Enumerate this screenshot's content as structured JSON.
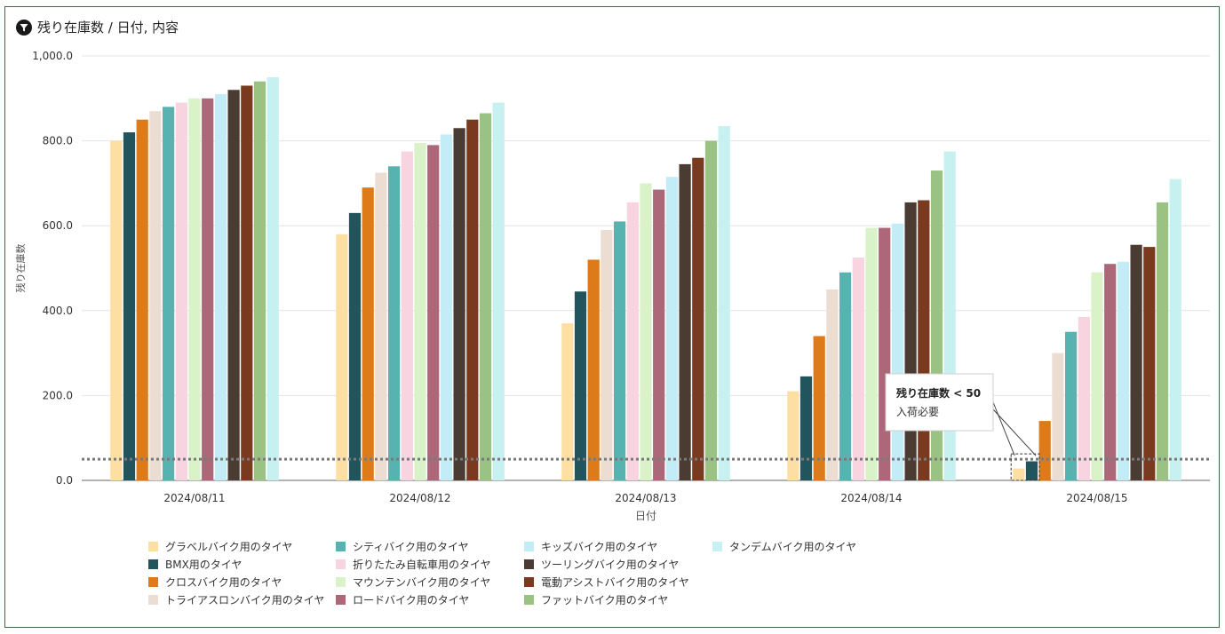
{
  "header": {
    "title": "残り在庫数 / 日付, 内容",
    "icon": "funnel-icon"
  },
  "chart_data": {
    "type": "bar",
    "title": "残り在庫数 / 日付, 内容",
    "xlabel": "日付",
    "ylabel": "残り在庫数",
    "ylim": [
      0,
      1000
    ],
    "yticks": [
      "0.0",
      "200.0",
      "400.0",
      "600.0",
      "800.0",
      "1,000.0"
    ],
    "categories": [
      "2024/08/11",
      "2024/08/12",
      "2024/08/13",
      "2024/08/14",
      "2024/08/15"
    ],
    "series": [
      {
        "name": "グラベルバイク用のタイヤ",
        "color": "#fddfa4",
        "values": [
          800,
          580,
          370,
          210,
          28
        ]
      },
      {
        "name": "BMX用のタイヤ",
        "color": "#22545d",
        "values": [
          820,
          630,
          445,
          245,
          45
        ]
      },
      {
        "name": "クロスバイク用のタイヤ",
        "color": "#dd7a1a",
        "values": [
          850,
          690,
          520,
          340,
          140
        ]
      },
      {
        "name": "トライアスロンバイク用のタイヤ",
        "color": "#ecddd3",
        "values": [
          870,
          725,
          590,
          450,
          300
        ]
      },
      {
        "name": "シティバイク用のタイヤ",
        "color": "#56b3b0",
        "values": [
          880,
          740,
          610,
          490,
          350
        ]
      },
      {
        "name": "折りたたみ自転車用のタイヤ",
        "color": "#f8d3e0",
        "values": [
          890,
          775,
          655,
          525,
          385
        ]
      },
      {
        "name": "マウンテンバイク用のタイヤ",
        "color": "#d9f2c7",
        "values": [
          900,
          795,
          700,
          595,
          490
        ]
      },
      {
        "name": "ロードバイク用のタイヤ",
        "color": "#ac6879",
        "values": [
          900,
          790,
          685,
          595,
          510
        ]
      },
      {
        "name": "キッズバイク用のタイヤ",
        "color": "#c2edf6",
        "values": [
          910,
          815,
          715,
          605,
          515
        ]
      },
      {
        "name": "ツーリングバイク用のタイヤ",
        "color": "#4a3b33",
        "values": [
          920,
          830,
          745,
          655,
          555
        ]
      },
      {
        "name": "電動アシストバイク用のタイヤ",
        "color": "#7a3a1f",
        "values": [
          930,
          850,
          760,
          660,
          550
        ]
      },
      {
        "name": "ファットバイク用のタイヤ",
        "color": "#9ac283",
        "values": [
          940,
          865,
          800,
          730,
          655
        ]
      },
      {
        "name": "タンデムバイク用のタイヤ",
        "color": "#c7f0f0",
        "values": [
          950,
          890,
          835,
          775,
          710
        ]
      }
    ],
    "reference_line": {
      "value": 50,
      "color": "#7a7a7a"
    },
    "annotation": {
      "title": "残り在庫数 < 50",
      "text": "入荷必要"
    }
  }
}
